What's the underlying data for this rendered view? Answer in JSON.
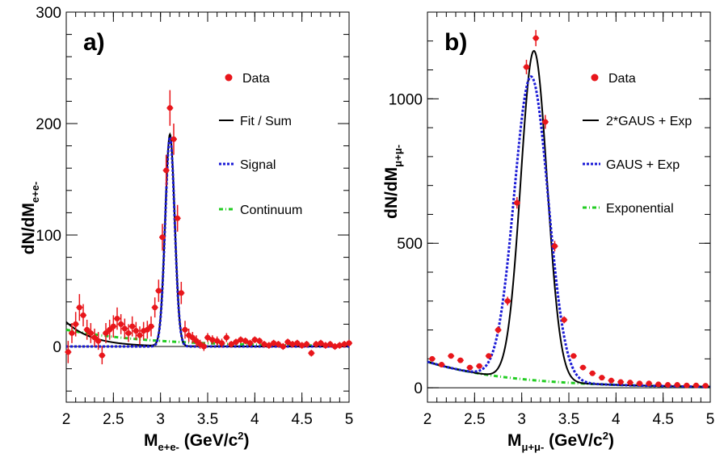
{
  "chart_data": [
    {
      "type": "scatter",
      "panel_label": "a)",
      "xlabel": "M_{e+e-} (GeV/c²)",
      "xlabel_main": "M",
      "xlabel_sub": "e+e-",
      "xlabel_unit": " (GeV/c",
      "xlabel_unit_end": ")",
      "ylabel_main": "dN/dM",
      "ylabel_sub": "e+e-",
      "xlim": [
        2,
        5
      ],
      "ylim": [
        -50,
        300
      ],
      "xticks": [
        2,
        2.5,
        3,
        3.5,
        4,
        4.5,
        5
      ],
      "yticks": [
        0,
        100,
        200,
        300
      ],
      "legend": [
        "Data",
        "Fit / Sum",
        "Signal",
        "Continuum"
      ],
      "colors": {
        "data": "#e8161b",
        "fit": "#000000",
        "signal": "#1a1ad6",
        "continuum": "#22cc22"
      },
      "series": [
        {
          "name": "Data",
          "x": [
            2.02,
            2.06,
            2.1,
            2.14,
            2.18,
            2.22,
            2.26,
            2.3,
            2.34,
            2.38,
            2.42,
            2.46,
            2.5,
            2.54,
            2.58,
            2.62,
            2.66,
            2.7,
            2.74,
            2.78,
            2.82,
            2.86,
            2.9,
            2.94,
            2.98,
            3.02,
            3.06,
            3.1,
            3.14,
            3.18,
            3.22,
            3.26,
            3.3,
            3.34,
            3.38,
            3.42,
            3.46,
            3.5,
            3.55,
            3.6,
            3.65,
            3.7,
            3.75,
            3.8,
            3.85,
            3.9,
            3.95,
            4.0,
            4.05,
            4.1,
            4.15,
            4.2,
            4.25,
            4.3,
            4.35,
            4.4,
            4.45,
            4.5,
            4.55,
            4.6,
            4.65,
            4.7,
            4.75,
            4.8,
            4.85,
            4.9,
            4.95,
            5.0
          ],
          "y": [
            -5,
            12,
            20,
            35,
            28,
            15,
            12,
            8,
            5,
            -8,
            12,
            15,
            18,
            25,
            20,
            16,
            12,
            18,
            14,
            10,
            14,
            15,
            18,
            35,
            50,
            98,
            158,
            214,
            186,
            115,
            48,
            15,
            10,
            8,
            5,
            2,
            0,
            8,
            6,
            5,
            3,
            8,
            2,
            4,
            6,
            5,
            3,
            6,
            5,
            2,
            1,
            3,
            2,
            0,
            4,
            2,
            3,
            1,
            2,
            -6,
            2,
            3,
            1,
            2,
            0,
            1,
            2,
            3
          ],
          "err": [
            10,
            9,
            11,
            12,
            10,
            9,
            9,
            8,
            8,
            8,
            9,
            9,
            10,
            10,
            9,
            9,
            8,
            9,
            8,
            8,
            8,
            8,
            9,
            9,
            10,
            12,
            14,
            16,
            14,
            12,
            10,
            8,
            6,
            5,
            5,
            4,
            4,
            4,
            4,
            4,
            4,
            4,
            3,
            3,
            3,
            3,
            3,
            3,
            3,
            3,
            3,
            3,
            3,
            3,
            3,
            3,
            3,
            3,
            3,
            3,
            3,
            3,
            3,
            3,
            3,
            3,
            3,
            3
          ]
        },
        {
          "name": "Fit / Sum",
          "peak": 190,
          "mean": 3.1,
          "sigma": 0.05,
          "tail_amp": 22,
          "tail_slope": 3.6
        },
        {
          "name": "Signal",
          "peak": 188,
          "mean": 3.1,
          "sigma": 0.05,
          "tail_amp": 0,
          "tail_slope": 0
        },
        {
          "name": "Continuum",
          "amp": 15,
          "slope": 1.1
        }
      ]
    },
    {
      "type": "scatter",
      "panel_label": "b)",
      "xlabel": "M_{μ+μ-} (GeV/c²)",
      "xlabel_main": "M",
      "xlabel_sub": "μ+μ-",
      "xlabel_unit": " (GeV/c",
      "xlabel_unit_end": ")",
      "ylabel_main": "dN/dM",
      "ylabel_sub": "μ+μ-",
      "xlim": [
        2,
        5
      ],
      "ylim": [
        -50,
        1300
      ],
      "xticks": [
        2,
        2.5,
        3,
        3.5,
        4,
        4.5,
        5
      ],
      "yticks": [
        0,
        500,
        1000
      ],
      "legend": [
        "Data",
        "2*GAUS + Exp",
        "GAUS + Exp",
        "Exponential"
      ],
      "colors": {
        "data": "#e8161b",
        "fit": "#000000",
        "signal": "#1a1ad6",
        "continuum": "#22cc22"
      },
      "series": [
        {
          "name": "Data",
          "x": [
            2.05,
            2.15,
            2.25,
            2.35,
            2.45,
            2.55,
            2.65,
            2.75,
            2.85,
            2.95,
            3.05,
            3.15,
            3.25,
            3.35,
            3.45,
            3.55,
            3.65,
            3.75,
            3.85,
            3.95,
            4.05,
            4.15,
            4.25,
            4.35,
            4.45,
            4.55,
            4.65,
            4.75,
            4.85,
            4.95
          ],
          "y": [
            100,
            80,
            110,
            95,
            70,
            75,
            110,
            200,
            300,
            640,
            1110,
            1210,
            920,
            490,
            235,
            110,
            70,
            50,
            35,
            25,
            20,
            18,
            15,
            15,
            12,
            10,
            10,
            8,
            8,
            7
          ],
          "err": [
            8,
            8,
            8,
            8,
            7,
            7,
            9,
            12,
            15,
            20,
            25,
            28,
            24,
            18,
            12,
            9,
            7,
            6,
            5,
            4,
            4,
            4,
            3,
            3,
            3,
            3,
            3,
            3,
            3,
            3
          ]
        },
        {
          "name": "2*GAUS + Exp",
          "peak": 1140,
          "mean": 3.13,
          "sigma": 0.14,
          "tail_amp": 90,
          "tail_slope": 1.1
        },
        {
          "name": "GAUS + Exp",
          "peak": 1050,
          "mean": 3.1,
          "sigma": 0.18,
          "tail_amp": 90,
          "tail_slope": 1.1
        },
        {
          "name": "Exponential",
          "amp": 90,
          "slope": 1.1
        }
      ]
    }
  ]
}
